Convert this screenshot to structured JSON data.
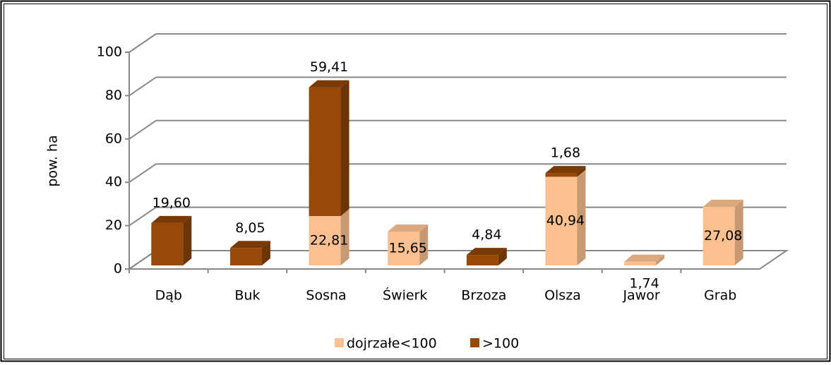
{
  "chart_data": {
    "type": "bar3d_stacked",
    "y_label": "pow. ha",
    "categories": [
      "Dąb",
      "Buk",
      "Sosna",
      "Świerk",
      "Brzoza",
      "Olsza",
      "Jawor",
      "Grab"
    ],
    "series": [
      {
        "name": "dojrzałe<100",
        "color": "#fac090",
        "values": [
          null,
          null,
          22.81,
          15.65,
          null,
          40.94,
          1.74,
          27.08
        ],
        "value_labels": [
          null,
          null,
          "22,81",
          "15,65",
          null,
          "40,94",
          "1,74",
          "27,08"
        ]
      },
      {
        "name": ">100",
        "color": "#984807",
        "values": [
          19.6,
          8.05,
          59.41,
          null,
          4.84,
          1.68,
          null,
          null
        ],
        "value_labels": [
          "19,60",
          "8,05",
          "59,41",
          null,
          "4,84",
          "1,68",
          null,
          null
        ]
      }
    ],
    "ylim": [
      0,
      100
    ],
    "yticks": [
      0,
      20,
      40,
      60,
      80,
      100
    ],
    "grid": true,
    "legend": "bottom"
  }
}
